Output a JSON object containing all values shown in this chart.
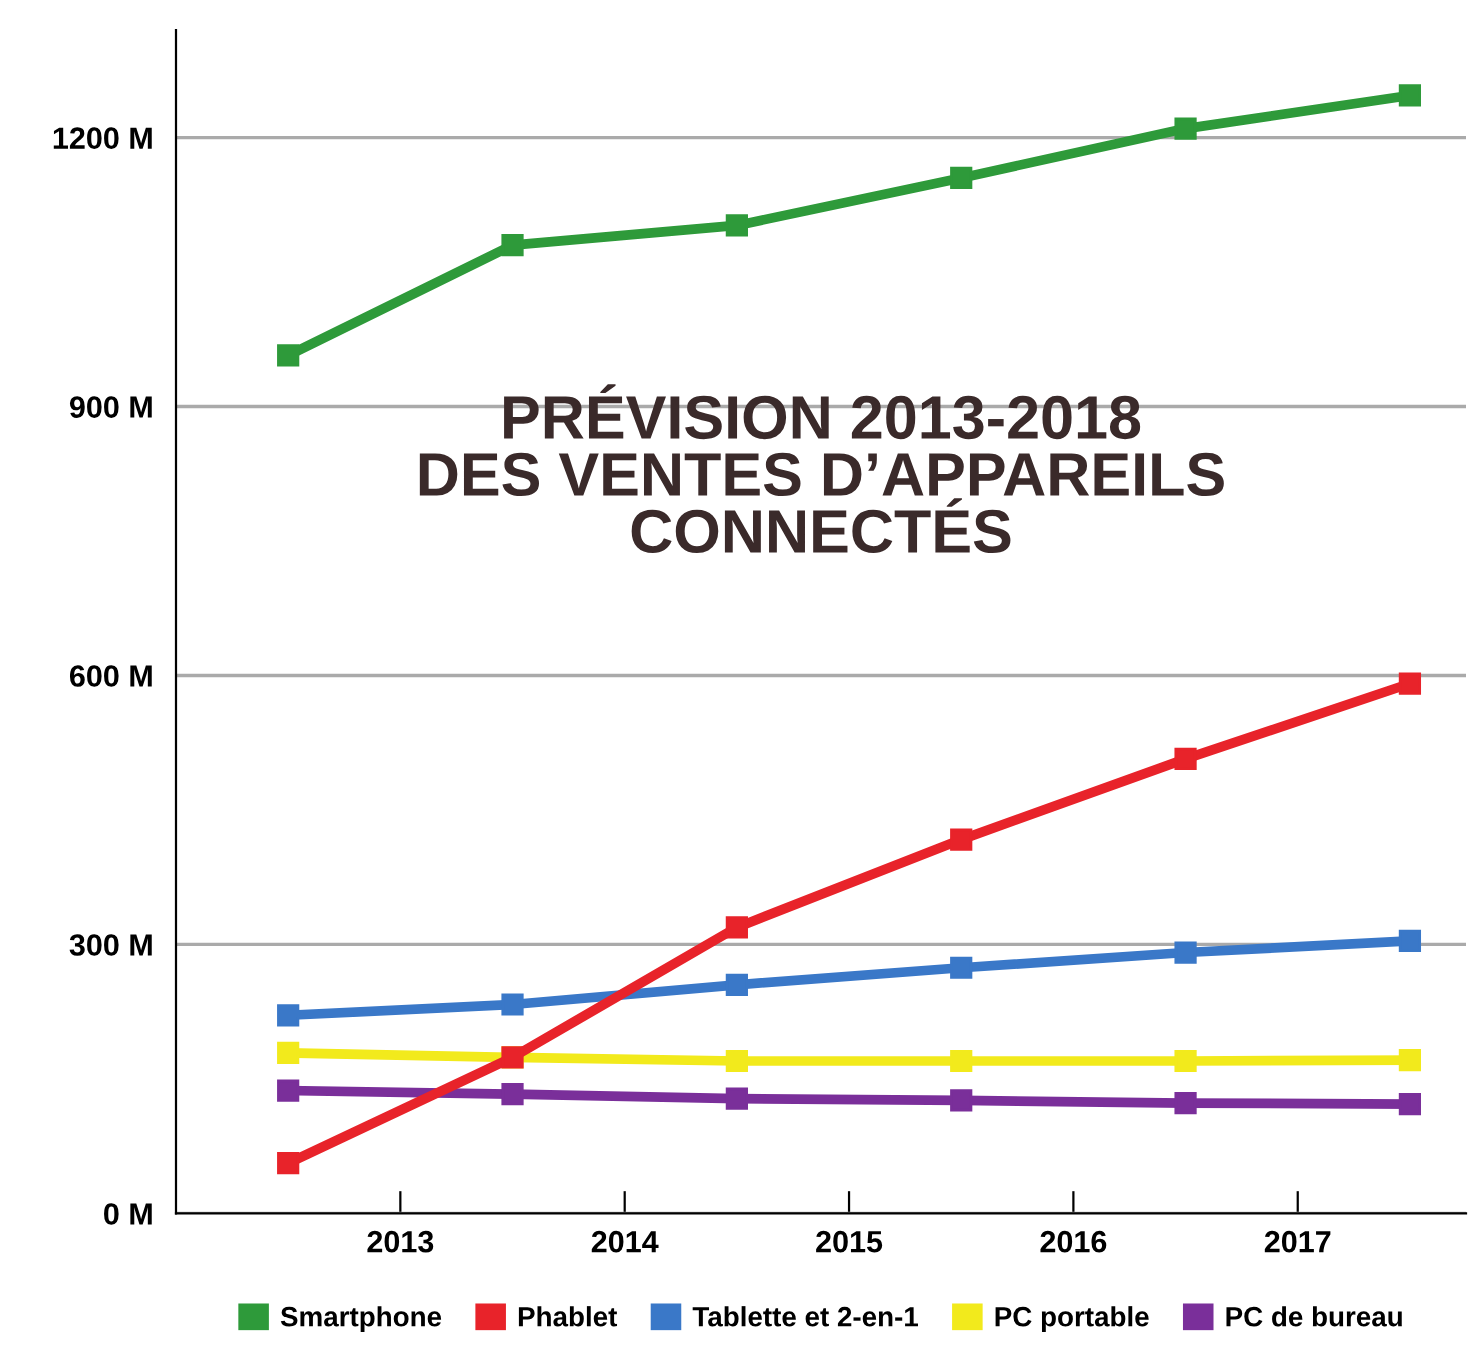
{
  "chart_data": {
    "type": "line",
    "title": "PRÉVISION 2013-2018\nDES VENTES D’APPAREILS\nCONNECTÉS",
    "x": [
      2012.5,
      2013.5,
      2014.5,
      2015.5,
      2016.5,
      2017.5
    ],
    "series": [
      {
        "name": "Smartphone",
        "color": "#2e9a3a",
        "values": [
          957,
          1080,
          1102,
          1155,
          1210,
          1247
        ]
      },
      {
        "name": "Phablet",
        "color": "#e8232a",
        "values": [
          56,
          174,
          319,
          417,
          507,
          591
        ]
      },
      {
        "name": "Tablette et 2-en-1",
        "color": "#3a78c8",
        "values": [
          221,
          233,
          255,
          274,
          291,
          304
        ]
      },
      {
        "name": "PC portable",
        "color": "#f2ea1c",
        "values": [
          179,
          174,
          170,
          170,
          170,
          171
        ]
      },
      {
        "name": "PC de bureau",
        "color": "#7a2f9a",
        "values": [
          137,
          133,
          128,
          126,
          123,
          122
        ]
      }
    ],
    "xlim": [
      2012,
      2017.75
    ],
    "xticks": [
      2013,
      2014,
      2015,
      2016,
      2017
    ],
    "ylim": [
      0,
      1320
    ],
    "yticks": [
      {
        "value": 0,
        "label": "0 M"
      },
      {
        "value": 300,
        "label": "300 M"
      },
      {
        "value": 600,
        "label": "600 M"
      },
      {
        "value": 900,
        "label": "900 M"
      },
      {
        "value": 1200,
        "label": "1200 M"
      }
    ],
    "grid": "y",
    "legend": "bottom",
    "marker": "square",
    "line_style": "solid"
  }
}
